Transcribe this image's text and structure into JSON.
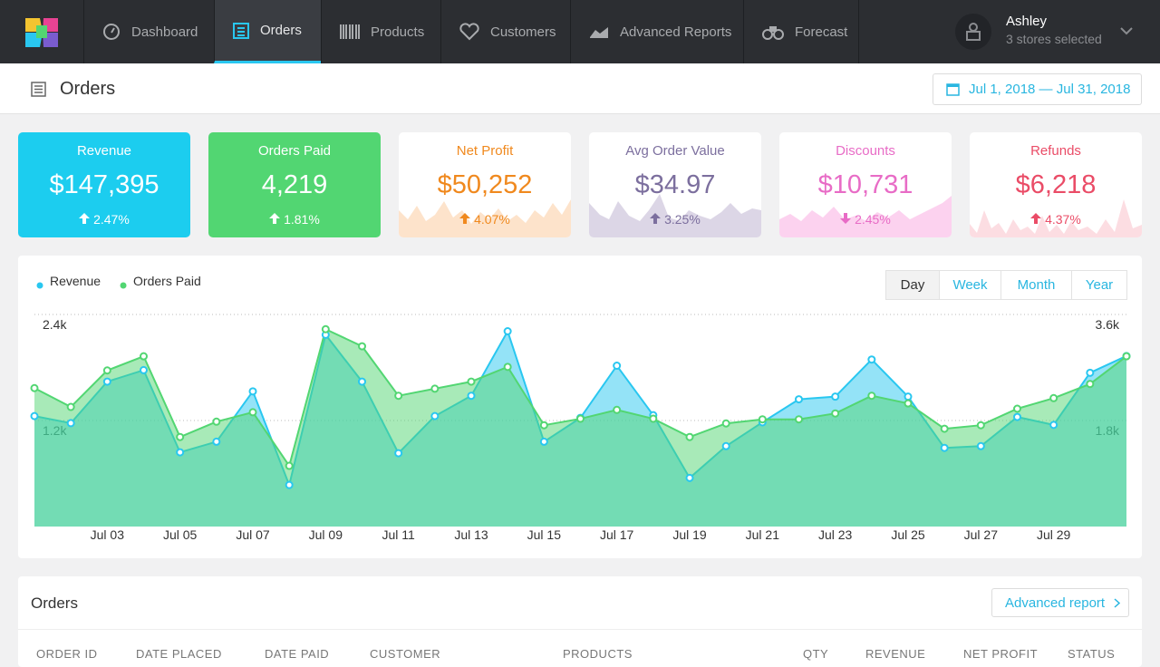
{
  "nav": {
    "items": [
      "Dashboard",
      "Orders",
      "Products",
      "Customers",
      "Advanced Reports",
      "Forecast"
    ],
    "user": "Ashley",
    "stores": "3 stores selected"
  },
  "header": {
    "title": "Orders",
    "date_range": "Jul 1, 2018 — Jul 31, 2018"
  },
  "cards": [
    {
      "title": "Revenue",
      "value": "$147,395",
      "change": "2.47%"
    },
    {
      "title": "Orders Paid",
      "value": "4,219",
      "change": "1.81%"
    },
    {
      "title": "Net Profit",
      "value": "$50,252",
      "change": "4.07%"
    },
    {
      "title": "Avg Order Value",
      "value": "$34.97",
      "change": "3.25%"
    },
    {
      "title": "Discounts",
      "value": "$10,731",
      "change": "2.45%"
    },
    {
      "title": "Refunds",
      "value": "$6,218",
      "change": "4.37%"
    }
  ],
  "periods": [
    "Day",
    "Week",
    "Month",
    "Year"
  ],
  "chart_data": {
    "type": "area",
    "legend": "top-left",
    "grid": true,
    "categories": [
      null,
      null,
      "Jul 03",
      null,
      "Jul 05",
      null,
      "Jul 07",
      null,
      "Jul 09",
      null,
      "Jul 11",
      null,
      "Jul 13",
      null,
      "Jul 15",
      null,
      "Jul 17",
      null,
      "Jul 19",
      null,
      "Jul 21",
      null,
      "Jul 23",
      null,
      "Jul 25",
      null,
      "Jul 27",
      null,
      "Jul 29",
      null,
      null
    ],
    "series": [
      {
        "name": "Revenue",
        "color": "#29c7f0",
        "values": [
          1250,
          1170,
          1640,
          1770,
          840,
          960,
          1530,
          470,
          2170,
          1640,
          830,
          1250,
          1480,
          2210,
          960,
          1230,
          1820,
          1260,
          550,
          910,
          1180,
          1440,
          1470,
          1890,
          1470,
          890,
          910,
          1240,
          1150,
          1740,
          1930
        ]
      },
      {
        "name": "Orders Paid",
        "color": "#52d672",
        "axis": "y2",
        "values": [
          2350,
          2030,
          2650,
          2890,
          1520,
          1780,
          1940,
          1030,
          3350,
          3060,
          2220,
          2340,
          2460,
          2710,
          1720,
          1830,
          1980,
          1830,
          1520,
          1750,
          1820,
          1820,
          1920,
          2220,
          2090,
          1660,
          1720,
          2000,
          2180,
          2420,
          2890
        ]
      }
    ],
    "ylim": [
      0,
      2400
    ],
    "yticks": [
      {
        "value": 1200,
        "label": "1.2k"
      },
      {
        "value": 2400,
        "label": "2.4k"
      }
    ],
    "y2lim": [
      0,
      3600
    ],
    "y2ticks": [
      {
        "value": 1800,
        "label": "1.8k"
      },
      {
        "value": 3600,
        "label": "3.6k"
      }
    ]
  },
  "orders": {
    "title": "Orders",
    "link": "Advanced report",
    "columns": [
      "ORDER ID",
      "DATE PLACED",
      "DATE PAID",
      "CUSTOMER",
      "PRODUCTS",
      "QTY",
      "REVENUE",
      "NET PROFIT",
      "STATUS"
    ]
  }
}
